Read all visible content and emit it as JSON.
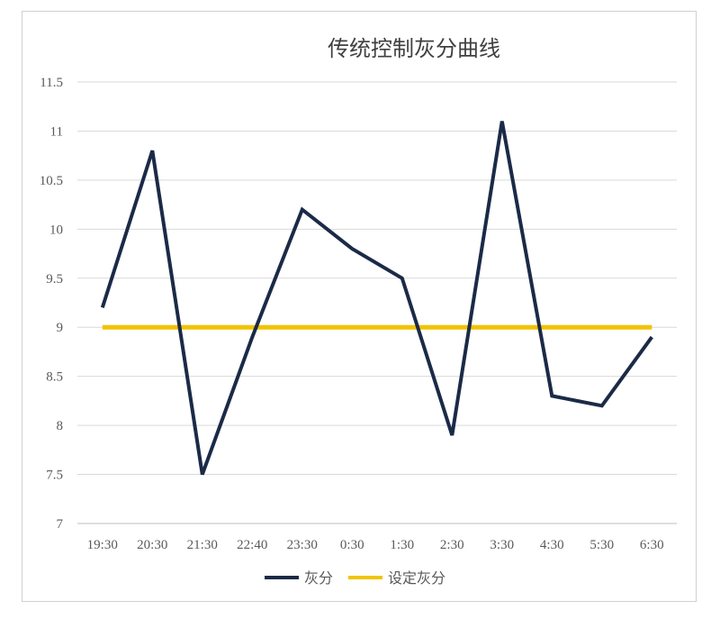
{
  "chart_data": {
    "type": "line",
    "title": "传统控制灰分曲线",
    "xlabel": "",
    "ylabel": "",
    "categories": [
      "19:30",
      "20:30",
      "21:30",
      "22:40",
      "23:30",
      "0:30",
      "1:30",
      "2:30",
      "3:30",
      "4:30",
      "5:30",
      "6:30"
    ],
    "ylim": [
      7,
      11.5
    ],
    "yticks": [
      "7",
      "7.5",
      "8",
      "8.5",
      "9",
      "9.5",
      "10",
      "10.5",
      "11",
      "11.5"
    ],
    "grid": true,
    "legend_position": "bottom",
    "series": [
      {
        "name": "灰分",
        "color": "#1b2a47",
        "values": [
          9.2,
          10.8,
          7.5,
          8.9,
          10.2,
          9.8,
          9.5,
          7.9,
          11.1,
          8.3,
          8.2,
          8.9
        ]
      },
      {
        "name": "设定灰分",
        "color": "#f2c300",
        "values": [
          9,
          9,
          9,
          9,
          9,
          9,
          9,
          9,
          9,
          9,
          9,
          9
        ]
      }
    ]
  }
}
